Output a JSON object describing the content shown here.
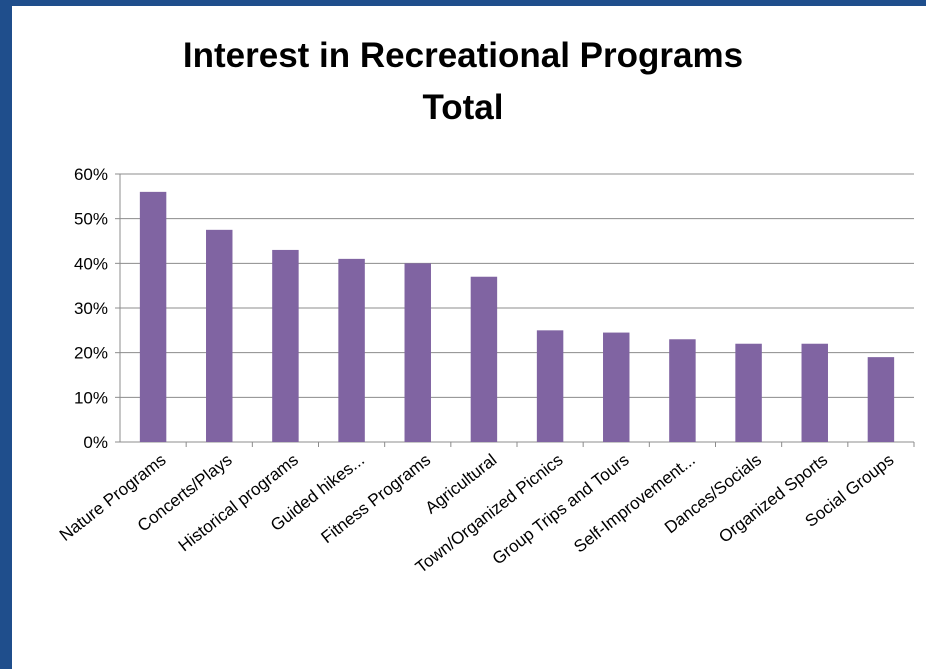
{
  "colors": {
    "frame": "#1f4e8c",
    "bar": "#8064a2",
    "grid": "#8c8c8c",
    "axis": "#8c8c8c"
  },
  "chart_data": {
    "type": "bar",
    "title": "Interest in Recreational Programs",
    "subtitle": "Total",
    "xlabel": "",
    "ylabel": "",
    "categories": [
      "Nature Programs",
      "Concerts/Plays",
      "Historical programs",
      "Guided hikes...",
      "Fitness Programs",
      "Agricultural",
      "Town/Organized Picnics",
      "Group Trips and Tours",
      "Self-Improvement...",
      "Dances/Socials",
      "Organized Sports",
      "Social Groups"
    ],
    "values": [
      0.56,
      0.475,
      0.43,
      0.41,
      0.4,
      0.37,
      0.25,
      0.245,
      0.23,
      0.22,
      0.22,
      0.19
    ],
    "ylim": [
      0,
      0.6
    ],
    "yticks": [
      "0%",
      "10%",
      "20%",
      "30%",
      "40%",
      "50%",
      "60%"
    ],
    "ytick_values": [
      0,
      0.1,
      0.2,
      0.3,
      0.4,
      0.5,
      0.6
    ],
    "grid": true,
    "legend": "none"
  }
}
